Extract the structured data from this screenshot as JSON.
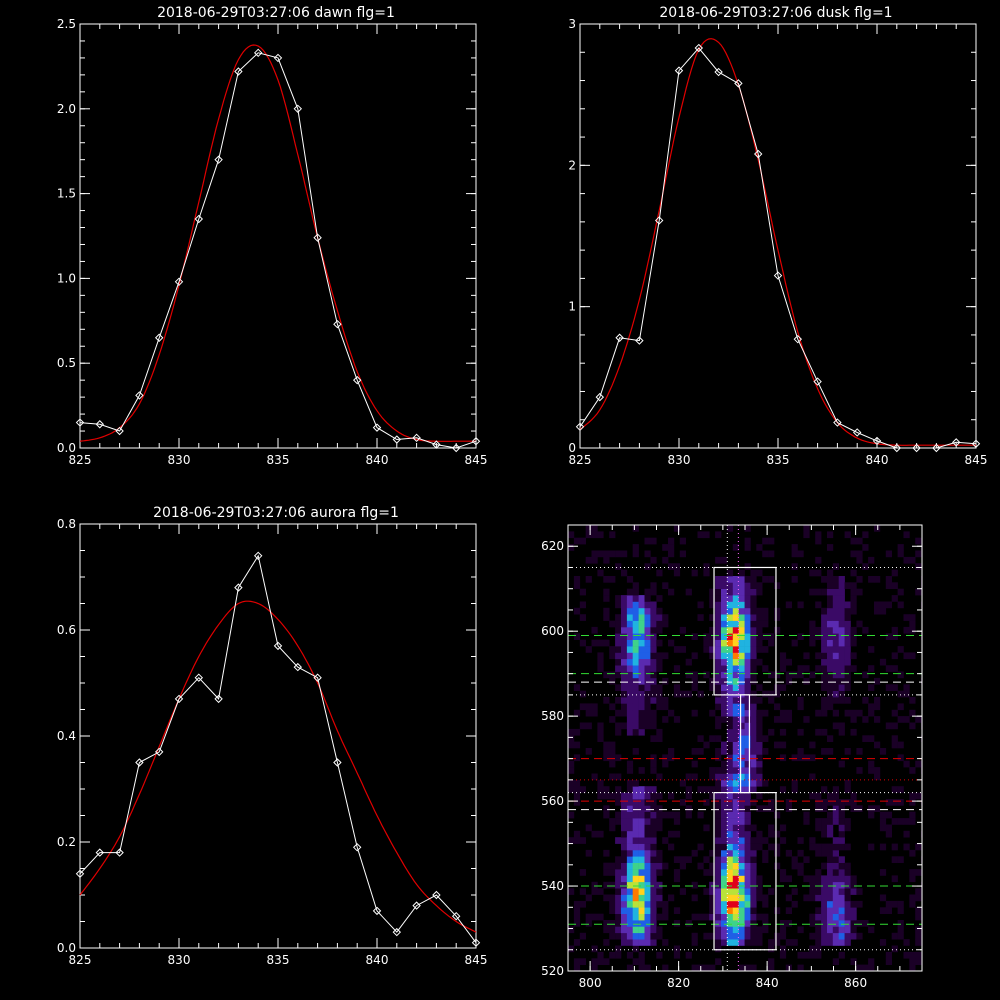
{
  "chart_data": [
    {
      "type": "line",
      "title": "2018-06-29T03:27:06 dawn flg=1",
      "xlim": [
        825,
        845
      ],
      "ylim": [
        0,
        2.5
      ],
      "xticks": [
        "825",
        "830",
        "835",
        "840",
        "845"
      ],
      "yticks": [
        "0.0",
        "0.5",
        "1.0",
        "1.5",
        "2.0",
        "2.5"
      ],
      "series": [
        {
          "style": "white-diamond",
          "x": [
            825,
            826,
            827,
            828,
            829,
            830,
            831,
            832,
            833,
            834,
            835,
            836,
            837,
            838,
            839,
            840,
            841,
            842,
            843,
            844,
            845
          ],
          "y": [
            0.15,
            0.14,
            0.1,
            0.31,
            0.65,
            0.98,
            1.35,
            1.7,
            2.22,
            2.33,
            2.3,
            2.0,
            1.24,
            0.73,
            0.4,
            0.12,
            0.05,
            0.06,
            0.02,
            0.0,
            0.04
          ]
        },
        {
          "style": "red-fit",
          "x": [
            825,
            826,
            827,
            828,
            829,
            830,
            831,
            832,
            833,
            834,
            835,
            836,
            837,
            838,
            839,
            840,
            841,
            842,
            843,
            844,
            845
          ],
          "y": [
            0.04,
            0.06,
            0.12,
            0.26,
            0.55,
            0.96,
            1.45,
            1.94,
            2.29,
            2.37,
            2.17,
            1.73,
            1.24,
            0.81,
            0.45,
            0.22,
            0.1,
            0.05,
            0.04,
            0.04,
            0.04
          ]
        }
      ]
    },
    {
      "type": "line",
      "title": "2018-06-29T03:27:06 dusk flg=1",
      "xlim": [
        825,
        845
      ],
      "ylim": [
        0,
        3
      ],
      "xticks": [
        "825",
        "830",
        "835",
        "840",
        "845"
      ],
      "yticks": [
        "0",
        "1",
        "2",
        "3"
      ],
      "series": [
        {
          "style": "white-diamond",
          "x": [
            825,
            826,
            827,
            828,
            829,
            830,
            831,
            832,
            833,
            834,
            835,
            836,
            837,
            838,
            839,
            840,
            841,
            842,
            843,
            844,
            845
          ],
          "y": [
            0.15,
            0.36,
            0.78,
            0.76,
            1.61,
            2.67,
            2.83,
            2.66,
            2.58,
            2.08,
            1.22,
            0.77,
            0.47,
            0.18,
            0.11,
            0.05,
            -0.05,
            -0.04,
            0.0,
            0.04,
            0.03
          ]
        },
        {
          "style": "red-fit",
          "x": [
            825,
            826,
            827,
            828,
            829,
            830,
            831,
            832,
            833,
            834,
            835,
            836,
            837,
            838,
            839,
            840,
            841,
            842,
            843,
            844,
            845
          ],
          "y": [
            0.13,
            0.27,
            0.58,
            1.05,
            1.68,
            2.34,
            2.82,
            2.87,
            2.57,
            2.04,
            1.4,
            0.82,
            0.42,
            0.18,
            0.07,
            0.03,
            0.02,
            0.02,
            0.02,
            0.02,
            0.02
          ]
        }
      ]
    },
    {
      "type": "line",
      "title": "2018-06-29T03:27:06 aurora flg=1",
      "xlim": [
        825,
        845
      ],
      "ylim": [
        0,
        0.8
      ],
      "xticks": [
        "825",
        "830",
        "835",
        "840",
        "845"
      ],
      "yticks": [
        "0.0",
        "0.2",
        "0.4",
        "0.6",
        "0.8"
      ],
      "series": [
        {
          "style": "white-diamond",
          "x": [
            825,
            826,
            827,
            828,
            829,
            830,
            831,
            832,
            833,
            834,
            835,
            836,
            837,
            838,
            839,
            840,
            841,
            842,
            843,
            844,
            845
          ],
          "y": [
            0.14,
            0.18,
            0.18,
            0.35,
            0.37,
            0.47,
            0.51,
            0.47,
            0.68,
            0.74,
            0.57,
            0.53,
            0.51,
            0.35,
            0.19,
            0.07,
            0.03,
            0.08,
            0.1,
            0.06,
            0.01
          ]
        },
        {
          "style": "red-fit",
          "x": [
            825,
            826,
            827,
            828,
            829,
            830,
            831,
            832,
            833,
            834,
            835,
            836,
            837,
            838,
            839,
            840,
            841,
            842,
            843,
            844,
            845
          ],
          "y": [
            0.1,
            0.15,
            0.21,
            0.29,
            0.38,
            0.47,
            0.55,
            0.61,
            0.65,
            0.65,
            0.62,
            0.57,
            0.5,
            0.41,
            0.33,
            0.25,
            0.18,
            0.12,
            0.08,
            0.05,
            0.03
          ]
        }
      ]
    },
    {
      "type": "heatmap",
      "xlim": [
        795,
        875
      ],
      "ylim": [
        520,
        625
      ],
      "xticks": [
        "800",
        "820",
        "840",
        "860"
      ],
      "yticks": [
        "520",
        "540",
        "560",
        "580",
        "600",
        "620"
      ],
      "colormap": [
        "#1a0026",
        "#3a0a66",
        "#5a2ab0",
        "#1f5fe6",
        "#20b3e0",
        "#3fd28a",
        "#b9e23a",
        "#ffd21e",
        "#ff7a00",
        "#e0001a"
      ],
      "bands": [
        {
          "x": 810,
          "y_range": [
            575,
            608
          ],
          "peak": 598,
          "intensity": 0.55
        },
        {
          "x": 810,
          "y_range": [
            525,
            562
          ],
          "peak": 537,
          "intensity": 0.8
        },
        {
          "x": 832,
          "y_range": [
            580,
            612
          ],
          "peak": 597,
          "intensity": 0.9
        },
        {
          "x": 832,
          "y_range": [
            525,
            565
          ],
          "peak": 537,
          "intensity": 1.0
        },
        {
          "x": 834,
          "y_range": [
            562,
            582
          ],
          "peak": 571,
          "intensity": 0.35
        },
        {
          "x": 855,
          "y_range": [
            525,
            560
          ],
          "peak": 532,
          "intensity": 0.35
        },
        {
          "x": 855,
          "y_range": [
            580,
            612
          ],
          "peak": 598,
          "intensity": 0.25
        }
      ],
      "boxes": [
        {
          "x": [
            828,
            842
          ],
          "y": [
            525,
            562
          ]
        },
        {
          "x": [
            828,
            842
          ],
          "y": [
            585,
            615
          ]
        },
        {
          "x": [
            834,
            836
          ],
          "y": [
            562,
            585
          ]
        }
      ],
      "hlines": [
        {
          "y": 615,
          "color": "#ffffff",
          "style": "dotted"
        },
        {
          "y": 599,
          "color": "#33dd33",
          "style": "dashed"
        },
        {
          "y": 590,
          "color": "#33dd33",
          "style": "dashed"
        },
        {
          "y": 588,
          "color": "#ffffff",
          "style": "dashed"
        },
        {
          "y": 585,
          "color": "#ffffff",
          "style": "dotted"
        },
        {
          "y": 570,
          "color": "#e00000",
          "style": "dashed"
        },
        {
          "y": 565,
          "color": "#e00000",
          "style": "dotted"
        },
        {
          "y": 562,
          "color": "#ffffff",
          "style": "dotted"
        },
        {
          "y": 560,
          "color": "#e00000",
          "style": "dashed"
        },
        {
          "y": 558,
          "color": "#ffffff",
          "style": "dashed"
        },
        {
          "y": 540,
          "color": "#33dd33",
          "style": "dashed"
        },
        {
          "y": 531,
          "color": "#33dd33",
          "style": "dashed"
        },
        {
          "y": 525,
          "color": "#ffffff",
          "style": "dotted"
        }
      ],
      "vlines": [
        {
          "x": 831,
          "color": "#ffffff",
          "style": "dotted"
        },
        {
          "x": 833.5,
          "color": "#ff66ff",
          "style": "dotted"
        }
      ]
    }
  ]
}
